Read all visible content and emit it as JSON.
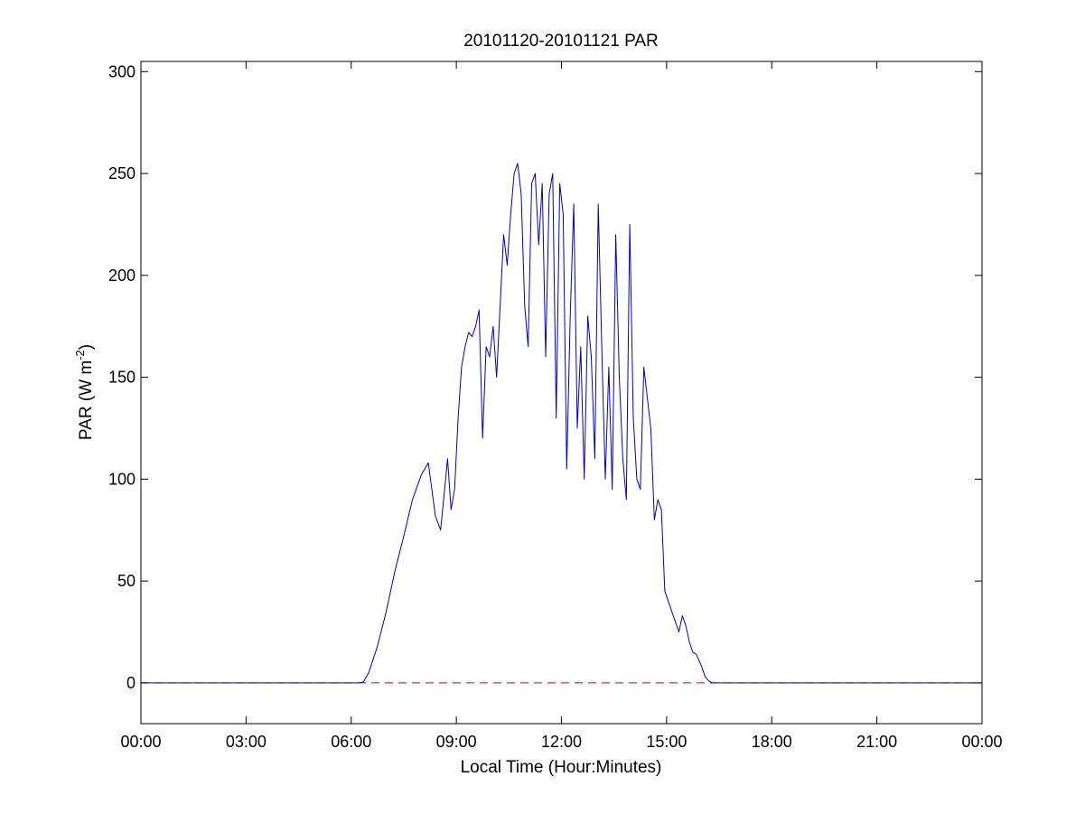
{
  "chart_data": {
    "type": "line",
    "title": "20101120-20101121 PAR",
    "xlabel": "Local Time (Hour:Minutes)",
    "ylabel": "PAR (W m",
    "ylabel_sup": "-2",
    "ylabel_close": ")",
    "xlim": [
      0,
      24
    ],
    "ylim": [
      -20,
      305
    ],
    "x_ticks": [
      0,
      3,
      6,
      9,
      12,
      15,
      18,
      21,
      24
    ],
    "x_tick_labels": [
      "00:00",
      "03:00",
      "06:00",
      "09:00",
      "12:00",
      "15:00",
      "18:00",
      "21:00",
      "00:00"
    ],
    "y_ticks": [
      0,
      50,
      100,
      150,
      200,
      250,
      300
    ],
    "y_tick_labels": [
      "0",
      "50",
      "100",
      "150",
      "200",
      "250",
      "300"
    ],
    "grid": false,
    "colors": {
      "series": "#0000cc",
      "baseline": "#cc0000",
      "axes": "#000000"
    },
    "series": [
      {
        "style": "solid",
        "x": [
          0,
          6.0,
          6.25,
          6.35,
          6.5,
          6.75,
          7.0,
          7.25,
          7.5,
          7.75,
          8.0,
          8.2,
          8.4,
          8.55,
          8.65,
          8.75,
          8.85,
          8.95,
          9.05,
          9.15,
          9.25,
          9.35,
          9.45,
          9.55,
          9.65,
          9.75,
          9.85,
          9.95,
          10.05,
          10.15,
          10.25,
          10.35,
          10.45,
          10.55,
          10.65,
          10.75,
          10.85,
          10.95,
          11.05,
          11.15,
          11.25,
          11.35,
          11.45,
          11.55,
          11.65,
          11.75,
          11.85,
          11.95,
          12.05,
          12.15,
          12.25,
          12.35,
          12.45,
          12.55,
          12.65,
          12.75,
          12.85,
          12.95,
          13.05,
          13.15,
          13.25,
          13.35,
          13.45,
          13.55,
          13.65,
          13.75,
          13.85,
          13.95,
          14.05,
          14.15,
          14.25,
          14.35,
          14.45,
          14.55,
          14.65,
          14.75,
          14.85,
          14.95,
          15.05,
          15.15,
          15.25,
          15.35,
          15.45,
          15.55,
          15.65,
          15.75,
          15.85,
          16.0,
          16.1,
          16.2,
          16.3,
          16.4,
          16.5,
          16.6,
          16.75,
          16.9,
          17.0,
          17.1,
          17.2,
          24
        ],
        "y": [
          0,
          0,
          0,
          0.5,
          5,
          18,
          35,
          55,
          72,
          90,
          102,
          108,
          82,
          75,
          92,
          110,
          85,
          95,
          130,
          155,
          165,
          172,
          170,
          175,
          183,
          120,
          165,
          160,
          175,
          150,
          185,
          220,
          205,
          230,
          250,
          255,
          240,
          185,
          165,
          245,
          250,
          215,
          245,
          160,
          240,
          250,
          130,
          245,
          230,
          105,
          180,
          235,
          125,
          165,
          100,
          180,
          160,
          110,
          235,
          165,
          100,
          155,
          95,
          220,
          150,
          110,
          90,
          225,
          130,
          100,
          95,
          155,
          140,
          125,
          80,
          90,
          85,
          45,
          40,
          35,
          30,
          25,
          33,
          28,
          20,
          15,
          14,
          8,
          3,
          1,
          0,
          0,
          0,
          0,
          0,
          0,
          0,
          0,
          0,
          0
        ]
      },
      {
        "style": "dashed",
        "x": [
          0,
          24
        ],
        "y": [
          0,
          0
        ]
      }
    ]
  }
}
